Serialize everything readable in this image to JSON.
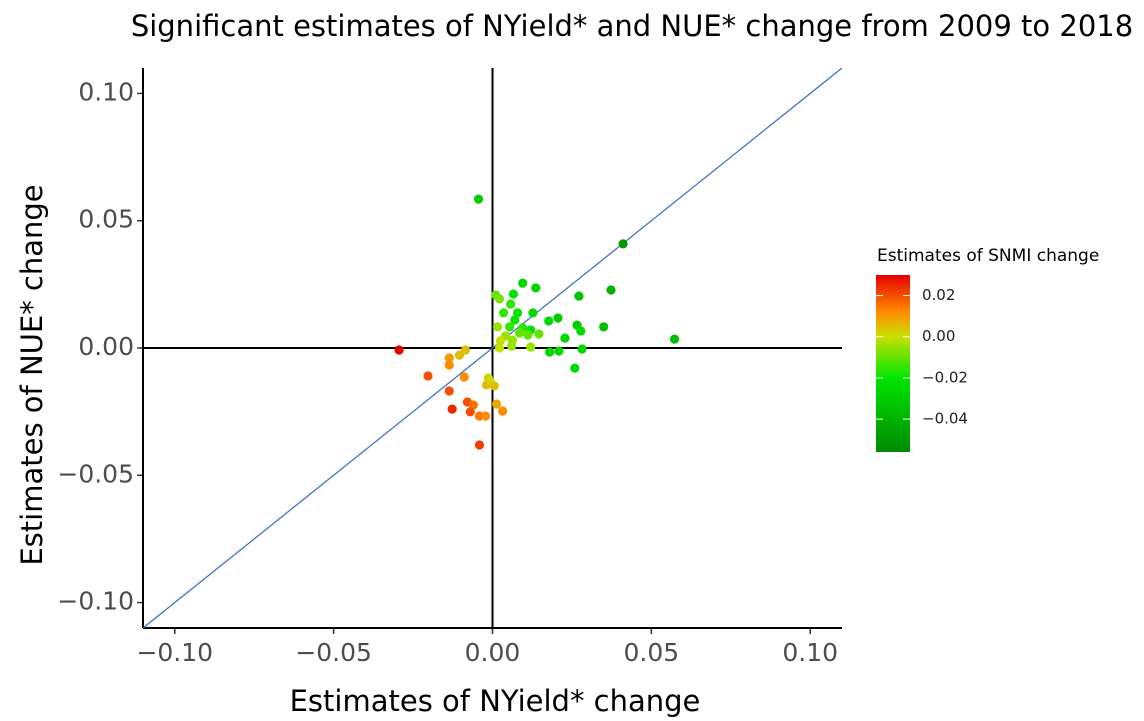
{
  "chart_data": {
    "type": "scatter",
    "title": "Significant estimates of NYield* and NUE* change from 2009 to 2018",
    "xlabel": "Estimates of NYield* change",
    "ylabel": "Estimates of NUE* change",
    "legend_title": "Estimates of SNMI change",
    "xlim": [
      -0.11,
      0.11
    ],
    "ylim": [
      -0.11,
      0.11
    ],
    "xticks": [
      {
        "value": -0.1,
        "label": "−0.10"
      },
      {
        "value": -0.05,
        "label": "−0.05"
      },
      {
        "value": 0,
        "label": "0.00"
      },
      {
        "value": 0.05,
        "label": "0.05"
      },
      {
        "value": 0.1,
        "label": "0.10"
      }
    ],
    "yticks": [
      {
        "value": -0.1,
        "label": "−0.10"
      },
      {
        "value": -0.05,
        "label": "−0.05"
      },
      {
        "value": 0,
        "label": "0.00"
      },
      {
        "value": 0.05,
        "label": "0.05"
      },
      {
        "value": 0.1,
        "label": "0.10"
      }
    ],
    "colorlim": [
      -0.056,
      0.03
    ],
    "colorticks": [
      0.02,
      {
        "value": 0,
        "label": "0.00"
      },
      {
        "value": -0.02,
        "label": "−0.02"
      },
      {
        "value": -0.04,
        "label": "−0.04"
      }
    ],
    "colorscale": [
      {
        "value": 0.03,
        "color": "#e60000"
      },
      {
        "value": 0.012,
        "color": "#ff8c00"
      },
      {
        "value": 0.0,
        "color": "#c8e000"
      },
      {
        "value": -0.02,
        "color": "#00e600"
      },
      {
        "value": -0.056,
        "color": "#008a00"
      }
    ],
    "diagonal_color": "#4472c4",
    "zero_lines": true,
    "x": [
      -0.0294,
      -0.0044,
      0.0411,
      0.0573,
      0.0373,
      0.035,
      0.0272,
      0.001,
      0.0022,
      0.0095,
      0.0136,
      0.0066,
      0.0057,
      0.0035,
      0.0079,
      0.0127,
      0.0177,
      0.0206,
      0.007,
      0.0054,
      0.0016,
      0.0095,
      0.012,
      0.0146,
      0.0111,
      0.0085,
      0.0041,
      0.0063,
      0.0025,
      0.006,
      0.0022,
      0.012,
      0.018,
      0.0209,
      0.0228,
      0.0266,
      0.0278,
      0.0282,
      0.0259,
      -0.0085,
      -0.0104,
      -0.0136,
      -0.0136,
      -0.0013,
      -0.0006,
      -0.0019,
      0.0006,
      -0.0203,
      -0.0089,
      -0.0136,
      -0.0079,
      -0.006,
      -0.0127,
      -0.007,
      0.0013,
      0.0032,
      -0.0041,
      -0.0022,
      -0.0041
    ],
    "values": [
      -0.0008,
      0.0585,
      0.0409,
      0.0035,
      0.0228,
      0.0083,
      0.0204,
      0.0208,
      0.0193,
      0.0255,
      0.0236,
      0.0212,
      0.0173,
      0.0138,
      0.0138,
      0.0138,
      0.0106,
      0.0118,
      0.011,
      0.0083,
      0.0083,
      0.0079,
      0.0071,
      0.0055,
      0.0051,
      0.0059,
      0.0047,
      0.0031,
      0.0028,
      0.0008,
      0.0,
      0.0004,
      -0.0016,
      -0.0012,
      0.0039,
      0.009,
      0.0067,
      -0.0004,
      -0.0079,
      -0.0008,
      -0.0028,
      -0.0039,
      -0.0067,
      -0.0118,
      -0.0134,
      -0.0145,
      -0.0149,
      -0.011,
      -0.0114,
      -0.0169,
      -0.0212,
      -0.0224,
      -0.024,
      -0.0251,
      -0.022,
      -0.0248,
      -0.0267,
      -0.0267,
      -0.0381
    ],
    "snmi": [
      0.03,
      -0.03,
      -0.05,
      -0.035,
      -0.04,
      -0.035,
      -0.035,
      -0.01,
      -0.008,
      -0.025,
      -0.025,
      -0.02,
      -0.015,
      -0.015,
      -0.02,
      -0.025,
      -0.025,
      -0.03,
      -0.02,
      -0.015,
      -0.005,
      -0.015,
      -0.02,
      -0.01,
      -0.01,
      -0.01,
      -0.005,
      -0.005,
      0.0,
      -0.005,
      0.0,
      -0.005,
      -0.025,
      -0.025,
      -0.025,
      -0.03,
      -0.025,
      -0.025,
      -0.025,
      0.005,
      0.005,
      0.01,
      0.012,
      0.002,
      0.0,
      0.005,
      0.005,
      0.02,
      0.012,
      0.02,
      0.02,
      0.015,
      0.025,
      0.02,
      0.008,
      0.012,
      0.015,
      0.012,
      0.022
    ]
  }
}
